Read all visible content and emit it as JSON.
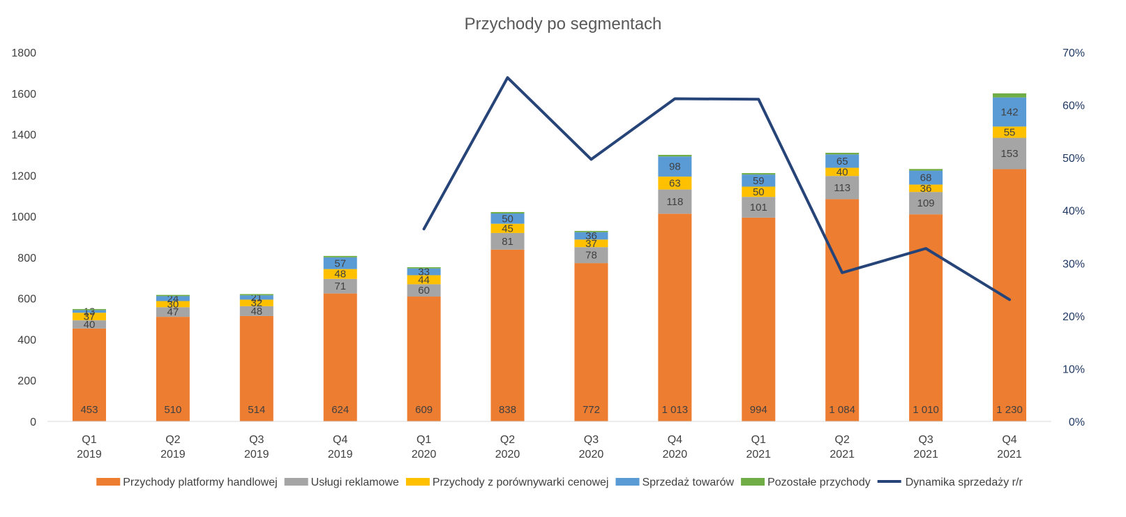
{
  "chart_data": {
    "type": "bar",
    "title": "Przychody po segmentach",
    "categories": [
      [
        "Q1",
        "2019"
      ],
      [
        "Q2",
        "2019"
      ],
      [
        "Q3",
        "2019"
      ],
      [
        "Q4",
        "2019"
      ],
      [
        "Q1",
        "2020"
      ],
      [
        "Q2",
        "2020"
      ],
      [
        "Q3",
        "2020"
      ],
      [
        "Q4",
        "2020"
      ],
      [
        "Q1",
        "2021"
      ],
      [
        "Q2",
        "2021"
      ],
      [
        "Q3",
        "2021"
      ],
      [
        "Q4",
        "2021"
      ]
    ],
    "y_axis": {
      "min": 0,
      "max": 1800,
      "step": 200,
      "tick_labels": [
        "0",
        "200",
        "400",
        "600",
        "800",
        "1000",
        "1200",
        "1400",
        "1600",
        "1800"
      ]
    },
    "y2_axis": {
      "min": 0,
      "max": 0.7,
      "step": 0.1,
      "tick_labels": [
        "0%",
        "10%",
        "20%",
        "30%",
        "40%",
        "50%",
        "60%",
        "70%"
      ]
    },
    "series": [
      {
        "name": "Przychody platformy handlowej",
        "color": "#ED7D31",
        "kind": "stacked-bar",
        "values": [
          453,
          510,
          514,
          624,
          609,
          838,
          772,
          1013,
          994,
          1084,
          1010,
          1230
        ],
        "labels": [
          "453",
          "510",
          "514",
          "624",
          "609",
          "838",
          "772",
          "1 013",
          "994",
          "1 084",
          "1 010",
          "1 230"
        ],
        "label_position": "bottom"
      },
      {
        "name": "Usługi reklamowe",
        "color": "#A5A5A5",
        "kind": "stacked-bar",
        "values": [
          40,
          47,
          48,
          71,
          60,
          81,
          78,
          118,
          101,
          113,
          109,
          153
        ],
        "labels": [
          "40",
          "47",
          "48",
          "71",
          "60",
          "81",
          "78",
          "118",
          "101",
          "113",
          "109",
          "153"
        ]
      },
      {
        "name": "Przychody z porównywarki cenowej",
        "color": "#FFC000",
        "kind": "stacked-bar",
        "values": [
          37,
          30,
          32,
          48,
          44,
          45,
          37,
          63,
          50,
          40,
          36,
          55
        ],
        "labels": [
          "37",
          "30",
          "32",
          "48",
          "44",
          "45",
          "37",
          "63",
          "50",
          "40",
          "36",
          "55"
        ]
      },
      {
        "name": "Sprzedaż towarów",
        "color": "#5B9BD5",
        "kind": "stacked-bar",
        "values": [
          13,
          24,
          21,
          57,
          33,
          50,
          36,
          98,
          59,
          65,
          68,
          142
        ],
        "labels": [
          "13",
          "24",
          "21",
          "57",
          "33",
          "50",
          "36",
          "98",
          "59",
          "65",
          "68",
          "142"
        ]
      },
      {
        "name": "Pozostałe przychody",
        "color": "#70AD47",
        "kind": "stacked-bar",
        "values": [
          5,
          6,
          6,
          7,
          6,
          7,
          6,
          8,
          7,
          8,
          8,
          20
        ],
        "labels": []
      },
      {
        "name": "Dynamika sprzedaży r/r",
        "color": "#264478",
        "kind": "line",
        "axis": "right",
        "values": [
          null,
          null,
          null,
          null,
          0.365,
          0.652,
          0.497,
          0.612,
          0.611,
          0.282,
          0.328,
          0.231
        ]
      }
    ],
    "legend_position": "bottom",
    "grid": false
  }
}
